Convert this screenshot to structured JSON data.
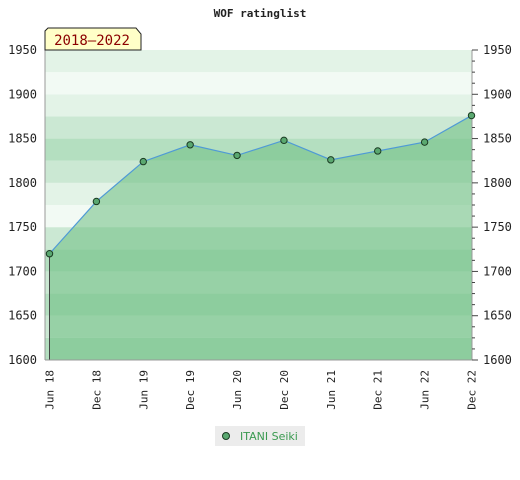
{
  "chart_data": {
    "type": "area",
    "title": "WOF ratinglist",
    "badge": "2018–2022",
    "xlabel": "",
    "ylabel": "",
    "ylim": [
      1600,
      1950
    ],
    "y_ticks": [
      1600,
      1650,
      1700,
      1750,
      1800,
      1850,
      1900,
      1950
    ],
    "x_categories": [
      "Jun 18",
      "Dec 18",
      "Jun 19",
      "Dec 19",
      "Jun 20",
      "Dec 20",
      "Jun 21",
      "Dec 21",
      "Jun 22",
      "Dec 22"
    ],
    "series": [
      {
        "name": "ITANI Seiki",
        "values": [
          1720,
          1779,
          1824,
          1843,
          1831,
          1848,
          1826,
          1836,
          1846,
          1876
        ]
      }
    ],
    "legend_position": "bottom-center",
    "grid": true
  },
  "colors": {
    "line": "#4f9ad6",
    "area": "#6dbd82",
    "point_fill": "#5aa870",
    "point_stroke": "#1a3b22",
    "band_dark": "#b4dfc0",
    "band_mid": "#cbe8d3",
    "band_light": "#e3f3e7",
    "band_white": "#f2faf4",
    "badge_bg": "#ffffc8",
    "badge_text": "#8b0000",
    "legend_text": "#3a9a50"
  }
}
